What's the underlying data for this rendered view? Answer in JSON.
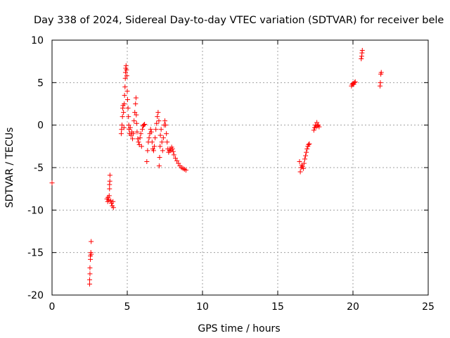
{
  "chart_data": {
    "type": "scatter",
    "title": "Day 338 of 2024, Sidereal Day-to-day VTEC variation (SDTVAR) for receiver bele",
    "xlabel": "GPS time / hours",
    "ylabel": "SDTVAR / TECUs",
    "xlim": [
      0,
      25
    ],
    "ylim": [
      -20,
      10
    ],
    "xticks": [
      0,
      5,
      10,
      15,
      20,
      25
    ],
    "yticks": [
      -20,
      -15,
      -10,
      -5,
      0,
      5,
      10
    ],
    "xtick_labels": [
      "0",
      "5",
      "10",
      "15",
      "20",
      "25"
    ],
    "ytick_labels": [
      "-20",
      "-15",
      "-10",
      "-5",
      "0",
      "5",
      "10"
    ],
    "grid": true,
    "marker": "+",
    "series": [
      {
        "name": "SDTVAR",
        "color": "#ff0000",
        "points": [
          [
            0.0,
            -6.8
          ],
          [
            2.5,
            -18.7
          ],
          [
            2.5,
            -18.2
          ],
          [
            2.52,
            -17.5
          ],
          [
            2.52,
            -16.8
          ],
          [
            2.55,
            -15.8
          ],
          [
            2.55,
            -15.4
          ],
          [
            2.58,
            -15.0
          ],
          [
            2.6,
            -15.2
          ],
          [
            2.6,
            -13.7
          ],
          [
            3.65,
            -8.7
          ],
          [
            3.7,
            -9.0
          ],
          [
            3.72,
            -8.5
          ],
          [
            3.78,
            -8.8
          ],
          [
            3.8,
            -8.3
          ],
          [
            3.82,
            -7.5
          ],
          [
            3.82,
            -7.0
          ],
          [
            3.84,
            -6.6
          ],
          [
            3.85,
            -5.9
          ],
          [
            3.9,
            -8.9
          ],
          [
            3.95,
            -9.2
          ],
          [
            4.0,
            -9.5
          ],
          [
            4.05,
            -9.0
          ],
          [
            4.08,
            -9.7
          ],
          [
            4.6,
            -1.0
          ],
          [
            4.62,
            -0.5
          ],
          [
            4.65,
            0.0
          ],
          [
            4.68,
            1.0
          ],
          [
            4.7,
            2.0
          ],
          [
            4.72,
            2.3
          ],
          [
            4.75,
            1.5
          ],
          [
            4.78,
            -0.3
          ],
          [
            4.8,
            2.5
          ],
          [
            4.82,
            3.5
          ],
          [
            4.85,
            4.5
          ],
          [
            4.87,
            5.5
          ],
          [
            4.88,
            6.2
          ],
          [
            4.9,
            6.7
          ],
          [
            4.92,
            7.0
          ],
          [
            4.95,
            6.5
          ],
          [
            4.97,
            5.8
          ],
          [
            5.0,
            4.0
          ],
          [
            5.02,
            3.0
          ],
          [
            5.05,
            2.0
          ],
          [
            5.08,
            1.0
          ],
          [
            5.1,
            0.0
          ],
          [
            5.12,
            -0.5
          ],
          [
            5.15,
            -1.0
          ],
          [
            5.2,
            -0.3
          ],
          [
            5.25,
            -1.2
          ],
          [
            5.3,
            -0.8
          ],
          [
            5.35,
            -1.6
          ],
          [
            5.4,
            -1.0
          ],
          [
            5.45,
            0.5
          ],
          [
            5.5,
            1.5
          ],
          [
            5.55,
            2.5
          ],
          [
            5.58,
            3.2
          ],
          [
            5.6,
            1.2
          ],
          [
            5.62,
            0.2
          ],
          [
            5.65,
            -0.8
          ],
          [
            5.7,
            -1.6
          ],
          [
            5.75,
            -2.0
          ],
          [
            5.8,
            -2.3
          ],
          [
            5.85,
            -1.5
          ],
          [
            5.9,
            -1.0
          ],
          [
            5.95,
            -2.5
          ],
          [
            6.0,
            -0.5
          ],
          [
            6.05,
            -0.1
          ],
          [
            6.1,
            0.0
          ],
          [
            6.15,
            0.1
          ],
          [
            6.3,
            -4.3
          ],
          [
            6.35,
            -3.0
          ],
          [
            6.4,
            -2.0
          ],
          [
            6.45,
            -1.5
          ],
          [
            6.5,
            -1.0
          ],
          [
            6.55,
            -0.5
          ],
          [
            6.6,
            -0.8
          ],
          [
            6.65,
            -2.0
          ],
          [
            6.7,
            -2.8
          ],
          [
            6.75,
            -3.0
          ],
          [
            6.8,
            -2.5
          ],
          [
            6.85,
            -1.5
          ],
          [
            6.9,
            -0.5
          ],
          [
            6.95,
            0.2
          ],
          [
            7.0,
            1.0
          ],
          [
            7.05,
            1.5
          ],
          [
            7.1,
            0.5
          ],
          [
            7.12,
            -4.8
          ],
          [
            7.15,
            -3.8
          ],
          [
            7.18,
            -2.5
          ],
          [
            7.2,
            -1.2
          ],
          [
            7.25,
            -0.5
          ],
          [
            7.3,
            -2.0
          ],
          [
            7.35,
            -3.0
          ],
          [
            7.4,
            -1.5
          ],
          [
            7.45,
            0.0
          ],
          [
            7.5,
            0.5
          ],
          [
            7.55,
            0.0
          ],
          [
            7.6,
            -1.0
          ],
          [
            7.65,
            -2.0
          ],
          [
            7.7,
            -2.8
          ],
          [
            7.75,
            -3.2
          ],
          [
            7.8,
            -3.0
          ],
          [
            7.85,
            -2.8
          ],
          [
            7.9,
            -3.0
          ],
          [
            7.95,
            -2.6
          ],
          [
            8.0,
            -2.8
          ],
          [
            8.05,
            -3.1
          ],
          [
            8.1,
            -3.5
          ],
          [
            8.2,
            -3.9
          ],
          [
            8.3,
            -4.2
          ],
          [
            8.4,
            -4.5
          ],
          [
            8.5,
            -4.8
          ],
          [
            8.6,
            -5.0
          ],
          [
            8.7,
            -5.1
          ],
          [
            8.8,
            -5.2
          ],
          [
            8.9,
            -5.3
          ],
          [
            16.45,
            -4.3
          ],
          [
            16.5,
            -5.5
          ],
          [
            16.55,
            -5.0
          ],
          [
            16.6,
            -4.7
          ],
          [
            16.65,
            -4.9
          ],
          [
            16.7,
            -5.1
          ],
          [
            16.75,
            -4.5
          ],
          [
            16.8,
            -4.0
          ],
          [
            16.85,
            -3.6
          ],
          [
            16.9,
            -3.2
          ],
          [
            16.95,
            -2.8
          ],
          [
            17.0,
            -2.5
          ],
          [
            17.05,
            -2.3
          ],
          [
            17.1,
            -2.2
          ],
          [
            17.4,
            -0.6
          ],
          [
            17.45,
            -0.3
          ],
          [
            17.5,
            0.0
          ],
          [
            17.55,
            -0.2
          ],
          [
            17.6,
            0.3
          ],
          [
            17.65,
            -0.1
          ],
          [
            17.7,
            0.0
          ],
          [
            17.75,
            -0.2
          ],
          [
            19.9,
            4.6
          ],
          [
            19.95,
            4.8
          ],
          [
            20.0,
            4.9
          ],
          [
            20.05,
            4.8
          ],
          [
            20.1,
            5.0
          ],
          [
            20.15,
            5.1
          ],
          [
            20.55,
            7.8
          ],
          [
            20.58,
            8.1
          ],
          [
            20.6,
            8.5
          ],
          [
            20.62,
            8.8
          ],
          [
            21.8,
            4.6
          ],
          [
            21.82,
            5.0
          ],
          [
            21.85,
            6.0
          ],
          [
            21.88,
            6.2
          ]
        ]
      }
    ]
  }
}
